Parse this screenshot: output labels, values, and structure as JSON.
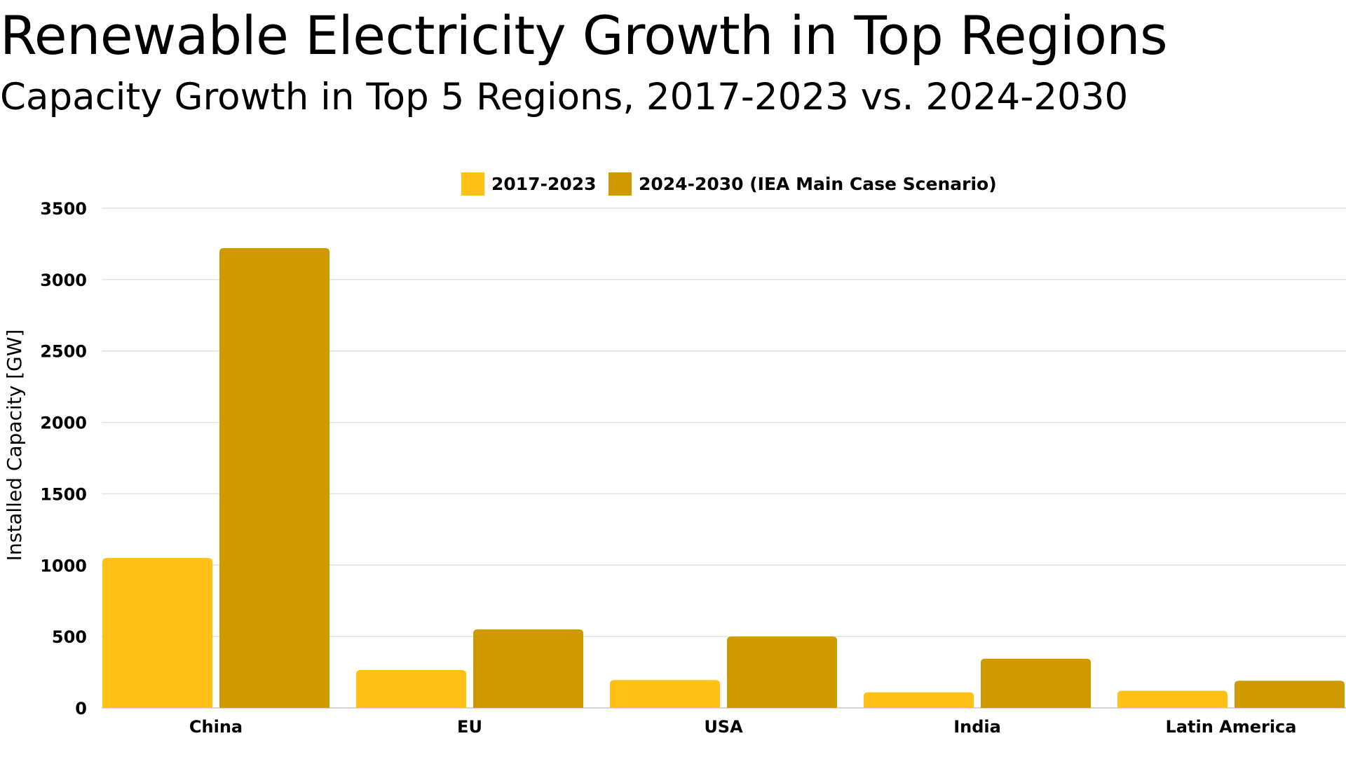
{
  "header": {
    "title": "Renewable Electricity Growth in Top Regions",
    "subtitle": "Capacity Growth in Top 5 Regions, 2017-2023 vs. 2024-2030"
  },
  "colors": {
    "series_a": "#FFC117",
    "series_b": "#CF9900",
    "gridline": "#E2E2E2",
    "axis_line": "#C8C8C8"
  },
  "chart_data": {
    "type": "bar",
    "title": "Renewable Electricity Growth in Top Regions",
    "subtitle": "Capacity Growth in Top 5 Regions, 2017-2023 vs. 2024-2030",
    "xlabel": "",
    "ylabel": "Installed Capacity [GW]",
    "ylim": [
      0,
      3500
    ],
    "yticks": [
      "0",
      "500",
      "1000",
      "1500",
      "2000",
      "2500",
      "3000",
      "3500"
    ],
    "ytick_values": [
      0,
      500,
      1000,
      1500,
      2000,
      2500,
      3000,
      3500
    ],
    "grid": true,
    "legend_position": "top-center",
    "categories": [
      "China",
      "EU",
      "USA",
      "India",
      "Latin America"
    ],
    "series": [
      {
        "name": "2017-2023",
        "values": [
          1050,
          265,
          195,
          110,
          120
        ]
      },
      {
        "name": "2024-2030 (IEA Main Case Scenario)",
        "values": [
          3220,
          550,
          500,
          345,
          190
        ]
      }
    ]
  }
}
